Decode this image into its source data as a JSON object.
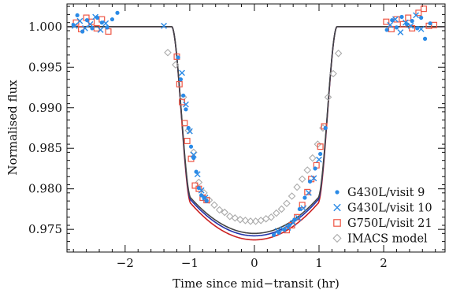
{
  "chart_data": {
    "type": "scatter",
    "xlabel": "Time since mid−transit (hr)",
    "ylabel": "Normalised flux",
    "xlim": [
      -2.9,
      2.95
    ],
    "ylim": [
      0.9722,
      1.0028
    ],
    "x_ticks": [
      {
        "value": -2,
        "label": "−2"
      },
      {
        "value": -1,
        "label": "−1"
      },
      {
        "value": 0,
        "label": "0"
      },
      {
        "value": 1,
        "label": "1"
      },
      {
        "value": 2,
        "label": "2"
      }
    ],
    "y_ticks": [
      {
        "value": 1.0,
        "label": "1.000"
      },
      {
        "value": 0.995,
        "label": "0.995"
      },
      {
        "value": 0.99,
        "label": "0.990"
      },
      {
        "value": 0.985,
        "label": "0.985"
      },
      {
        "value": 0.98,
        "label": "0.980"
      },
      {
        "value": 0.975,
        "label": "0.975"
      }
    ],
    "legend_position": "bottom-right",
    "model_curves": [
      {
        "color": "#cc2222",
        "transit_depth": 0.0263,
        "half_duration": 1.28,
        "ingress_duration": 0.3
      },
      {
        "color": "#2233aa",
        "transit_depth": 0.0258,
        "half_duration": 1.28,
        "ingress_duration": 0.3
      },
      {
        "color": "#444444",
        "transit_depth": 0.0255,
        "half_duration": 1.28,
        "ingress_duration": 0.3
      }
    ],
    "series": [
      {
        "name": "G430L/visit 9",
        "marker": "circle",
        "color": "#2a8ae6",
        "points": [
          [
            -2.8,
            1.0002
          ],
          [
            -2.74,
            1.0014
          ],
          [
            -2.66,
            0.9994
          ],
          [
            -2.59,
            1.0008
          ],
          [
            -2.51,
            0.9998
          ],
          [
            -2.43,
            1.0011
          ],
          [
            -2.36,
            1.0005
          ],
          [
            -2.28,
            0.9999
          ],
          [
            -2.2,
            1.0009
          ],
          [
            -2.12,
            1.0017
          ],
          [
            -1.18,
            0.9962
          ],
          [
            -1.14,
            0.9935
          ],
          [
            -1.1,
            0.9915
          ],
          [
            -1.06,
            0.9898
          ],
          [
            -1.02,
            0.9875
          ],
          [
            -0.98,
            0.9852
          ],
          [
            -0.94,
            0.9838
          ],
          [
            -0.9,
            0.9821
          ],
          [
            -0.86,
            0.9801
          ],
          [
            -0.82,
            0.9792
          ],
          [
            -0.78,
            0.9789
          ],
          [
            -0.74,
            0.9785
          ],
          [
            0.3,
            0.9743
          ],
          [
            0.38,
            0.9746
          ],
          [
            0.46,
            0.975
          ],
          [
            0.54,
            0.9755
          ],
          [
            0.62,
            0.9762
          ],
          [
            0.7,
            0.9775
          ],
          [
            0.78,
            0.9789
          ],
          [
            0.86,
            0.9809
          ],
          [
            0.94,
            0.9825
          ],
          [
            1.02,
            0.9843
          ],
          [
            1.1,
            0.9875
          ],
          [
            2.05,
            0.9996
          ],
          [
            2.13,
            1.0008
          ],
          [
            2.2,
            0.9999
          ],
          [
            2.28,
            1.0012
          ],
          [
            2.36,
            1.0003
          ],
          [
            2.44,
            1.0007
          ],
          [
            2.52,
            0.9998
          ],
          [
            2.58,
            1.0011
          ],
          [
            2.64,
            0.9985
          ],
          [
            2.72,
            1.0004
          ]
        ]
      },
      {
        "name": "G430L/visit 10",
        "marker": "x",
        "color": "#2a8ae6",
        "points": [
          [
            -2.78,
            1.0001
          ],
          [
            -2.7,
            1.0007
          ],
          [
            -2.62,
            0.9998
          ],
          [
            -2.54,
            1.0003
          ],
          [
            -2.46,
            1.0012
          ],
          [
            -2.38,
            0.9996
          ],
          [
            -2.3,
            1.0004
          ],
          [
            -1.4,
            1.0001
          ],
          [
            -1.12,
            0.9943
          ],
          [
            -1.06,
            0.9904
          ],
          [
            -1.0,
            0.9871
          ],
          [
            -0.94,
            0.9842
          ],
          [
            -0.88,
            0.9818
          ],
          [
            -0.82,
            0.9798
          ],
          [
            -0.76,
            0.9789
          ],
          [
            0.36,
            0.9748
          ],
          [
            0.44,
            0.975
          ],
          [
            0.52,
            0.9752
          ],
          [
            0.6,
            0.9758
          ],
          [
            0.68,
            0.9764
          ],
          [
            0.76,
            0.9776
          ],
          [
            0.84,
            0.9795
          ],
          [
            0.92,
            0.9813
          ],
          [
            1.0,
            0.9836
          ],
          [
            2.1,
            1.0002
          ],
          [
            2.18,
            1.0009
          ],
          [
            2.26,
            0.9993
          ],
          [
            2.34,
            1.0005
          ],
          [
            2.42,
            1.0001
          ],
          [
            2.5,
            1.0014
          ],
          [
            2.58,
            0.9997
          ]
        ]
      },
      {
        "name": "G750L/visit 21",
        "marker": "square",
        "color": "#ee5544",
        "points": [
          [
            -2.76,
            1.0005
          ],
          [
            -2.68,
            0.9997
          ],
          [
            -2.6,
            1.0011
          ],
          [
            -2.52,
            1.0006
          ],
          [
            -2.44,
            0.9998
          ],
          [
            -2.36,
            1.0009
          ],
          [
            -2.26,
            0.9994
          ],
          [
            -1.2,
            0.9963
          ],
          [
            -1.16,
            0.9929
          ],
          [
            -1.12,
            0.9907
          ],
          [
            -1.08,
            0.9881
          ],
          [
            -1.04,
            0.9859
          ],
          [
            -0.98,
            0.9837
          ],
          [
            -0.92,
            0.9804
          ],
          [
            -0.86,
            0.98
          ],
          [
            -0.8,
            0.9789
          ],
          [
            -0.74,
            0.9786
          ],
          [
            0.5,
            0.9749
          ],
          [
            0.58,
            0.9755
          ],
          [
            0.66,
            0.9765
          ],
          [
            0.74,
            0.978
          ],
          [
            0.82,
            0.9796
          ],
          [
            0.88,
            0.9812
          ],
          [
            0.96,
            0.9829
          ],
          [
            1.02,
            0.9852
          ],
          [
            1.08,
            0.9877
          ],
          [
            2.04,
            1.0006
          ],
          [
            2.12,
            0.9997
          ],
          [
            2.2,
            1.0009
          ],
          [
            2.3,
            1.0003
          ],
          [
            2.38,
            1.0011
          ],
          [
            2.44,
            0.9998
          ],
          [
            2.54,
            1.0017
          ],
          [
            2.62,
            1.0022
          ],
          [
            2.7,
            1.0001
          ],
          [
            2.78,
            1.0002
          ]
        ]
      },
      {
        "name": "IMACS model",
        "marker": "diamond",
        "color": "#aaaaaa",
        "points": [
          [
            -1.34,
            0.9968
          ],
          [
            -1.22,
            0.9953
          ],
          [
            -1.1,
            0.9913
          ],
          [
            -1.02,
            0.9872
          ],
          [
            -0.94,
            0.9845
          ],
          [
            -0.86,
            0.9808
          ],
          [
            -0.78,
            0.9795
          ],
          [
            -0.7,
            0.9786
          ],
          [
            -0.62,
            0.978
          ],
          [
            -0.54,
            0.9774
          ],
          [
            -0.46,
            0.9771
          ],
          [
            -0.38,
            0.9766
          ],
          [
            -0.3,
            0.9764
          ],
          [
            -0.22,
            0.9762
          ],
          [
            -0.14,
            0.9761
          ],
          [
            -0.06,
            0.976
          ],
          [
            0.02,
            0.976
          ],
          [
            0.1,
            0.9761
          ],
          [
            0.18,
            0.9763
          ],
          [
            0.26,
            0.9765
          ],
          [
            0.34,
            0.977
          ],
          [
            0.42,
            0.9775
          ],
          [
            0.5,
            0.9782
          ],
          [
            0.58,
            0.9791
          ],
          [
            0.66,
            0.9802
          ],
          [
            0.74,
            0.9812
          ],
          [
            0.82,
            0.9823
          ],
          [
            0.9,
            0.9838
          ],
          [
            0.98,
            0.9855
          ],
          [
            1.06,
            0.9875
          ],
          [
            1.14,
            0.9913
          ],
          [
            1.22,
            0.9942
          ],
          [
            1.3,
            0.9967
          ]
        ]
      }
    ]
  }
}
